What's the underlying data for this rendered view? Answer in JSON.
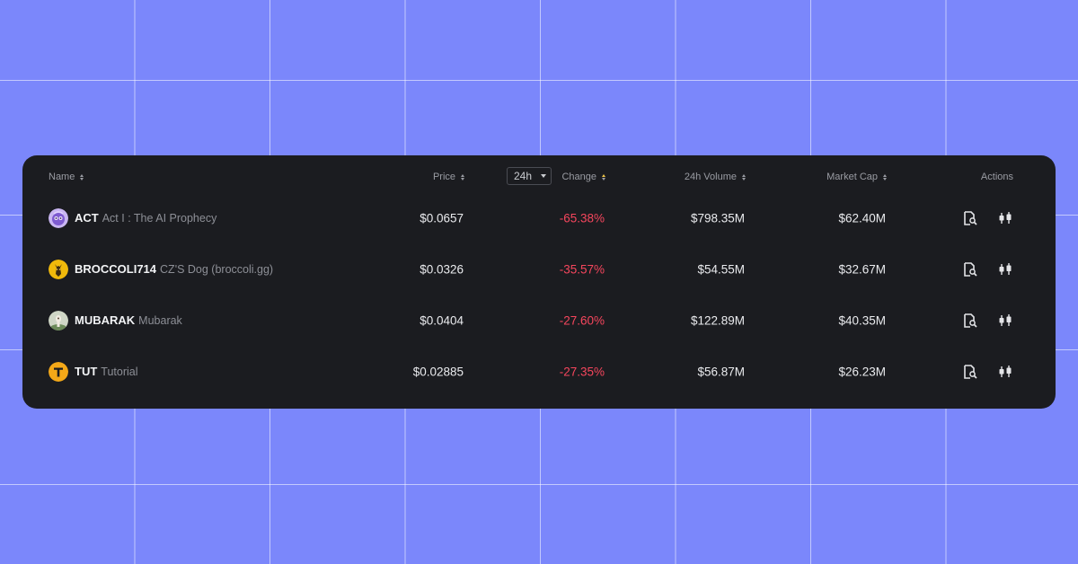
{
  "table": {
    "headers": {
      "name": "Name",
      "price": "Price",
      "timeframe": "24h",
      "change": "Change",
      "volume": "24h Volume",
      "market_cap": "Market Cap",
      "actions": "Actions"
    },
    "rows": [
      {
        "symbol": "ACT",
        "name": "Act I : The AI Prophecy",
        "price": "$0.0657",
        "change": "-65.38%",
        "volume": "$798.35M",
        "market_cap": "$62.40M",
        "logo": "act-logo-icon"
      },
      {
        "symbol": "BROCCOLI714",
        "name": "CZ'S Dog (broccoli.gg)",
        "price": "$0.0326",
        "change": "-35.57%",
        "volume": "$54.55M",
        "market_cap": "$32.67M",
        "logo": "broccoli-dog-logo-icon"
      },
      {
        "symbol": "MUBARAK",
        "name": "Mubarak",
        "price": "$0.0404",
        "change": "-27.60%",
        "volume": "$122.89M",
        "market_cap": "$40.35M",
        "logo": "mubarak-logo-icon"
      },
      {
        "symbol": "TUT",
        "name": "Tutorial",
        "price": "$0.02885",
        "change": "-27.35%",
        "volume": "$56.87M",
        "market_cap": "$26.23M",
        "logo": "tut-logo-icon"
      }
    ],
    "action_icons": [
      "token-details-icon",
      "trade-chart-icon"
    ]
  },
  "colors": {
    "background": "#7b87fb",
    "panel": "#1b1c20",
    "negative": "#f6465d",
    "sort_active": "#f0c64a"
  }
}
